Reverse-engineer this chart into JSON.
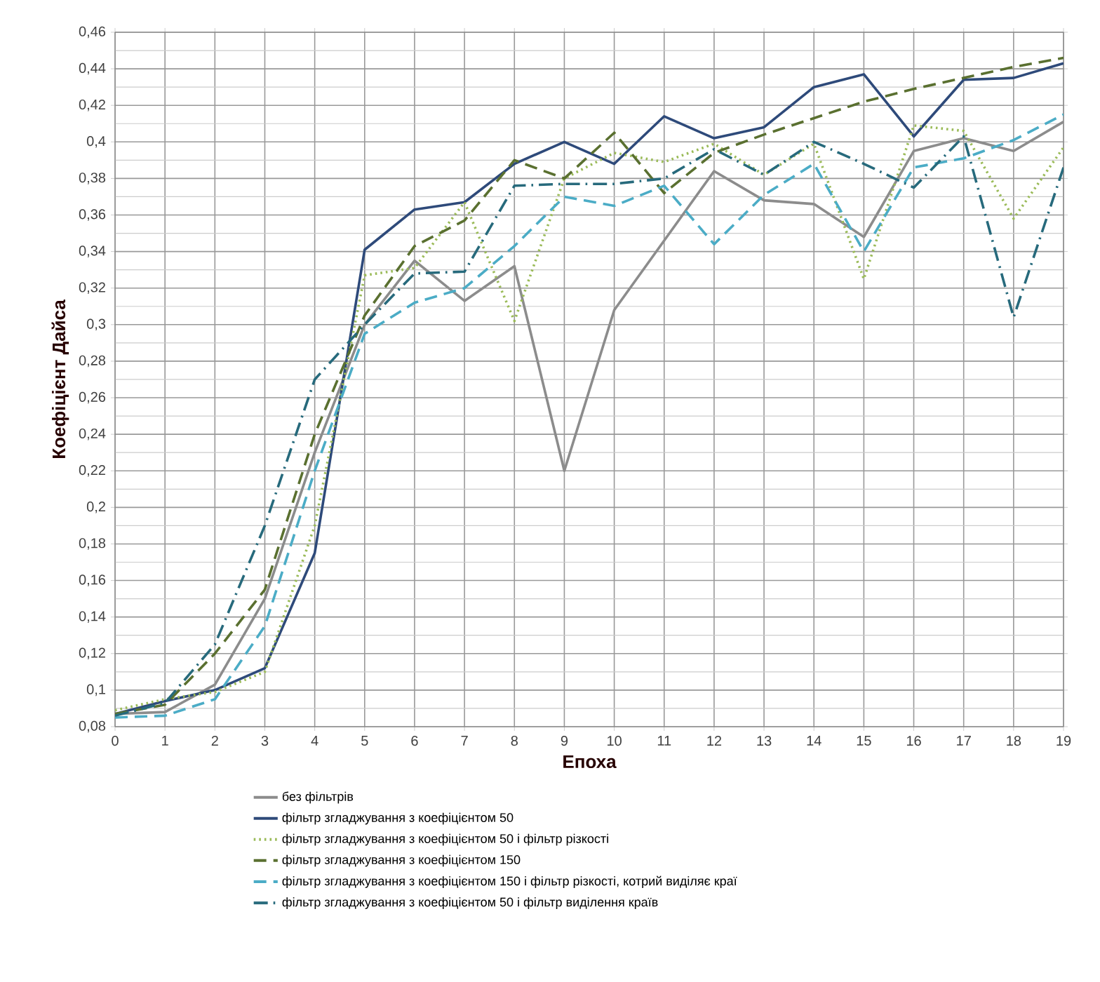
{
  "chart_data": {
    "type": "line",
    "xlabel": "Епоха",
    "ylabel": "Коефіцієнт Дайса",
    "x": [
      0,
      1,
      2,
      3,
      4,
      5,
      6,
      7,
      8,
      9,
      10,
      11,
      12,
      13,
      14,
      15,
      16,
      17,
      18,
      19
    ],
    "xlim": [
      0,
      19
    ],
    "xticks": [
      0,
      1,
      2,
      3,
      4,
      5,
      6,
      7,
      8,
      9,
      10,
      11,
      12,
      13,
      14,
      15,
      16,
      17,
      18,
      19
    ],
    "ylim": [
      0.08,
      0.46
    ],
    "yticks": [
      {
        "value": 0.08,
        "label": "0,08"
      },
      {
        "value": 0.1,
        "label": "0,1"
      },
      {
        "value": 0.12,
        "label": "0,12"
      },
      {
        "value": 0.14,
        "label": "0,14"
      },
      {
        "value": 0.16,
        "label": "0,16"
      },
      {
        "value": 0.18,
        "label": "0,18"
      },
      {
        "value": 0.2,
        "label": "0,2"
      },
      {
        "value": 0.22,
        "label": "0,22"
      },
      {
        "value": 0.24,
        "label": "0,24"
      },
      {
        "value": 0.26,
        "label": "0,26"
      },
      {
        "value": 0.28,
        "label": "0,28"
      },
      {
        "value": 0.3,
        "label": "0,3"
      },
      {
        "value": 0.32,
        "label": "0,32"
      },
      {
        "value": 0.34,
        "label": "0,34"
      },
      {
        "value": 0.36,
        "label": "0,36"
      },
      {
        "value": 0.38,
        "label": "0,38"
      },
      {
        "value": 0.4,
        "label": "0,4"
      },
      {
        "value": 0.42,
        "label": "0,42"
      },
      {
        "value": 0.44,
        "label": "0,44"
      },
      {
        "value": 0.46,
        "label": "0,46"
      }
    ],
    "grid": true,
    "legend": "bottom",
    "marker": "none",
    "series": [
      {
        "name": "без фільтрів",
        "color": "#8c8c8c",
        "line_style": "solid",
        "values": [
          0.087,
          0.088,
          0.103,
          0.15,
          0.23,
          0.3,
          0.335,
          0.313,
          0.332,
          0.22,
          0.308,
          0.346,
          0.384,
          0.368,
          0.366,
          0.348,
          0.395,
          0.402,
          0.395,
          0.411
        ]
      },
      {
        "name": "фільтр згладжування з коефіцієнтом 50",
        "color": "#2e4a7a",
        "line_style": "solid",
        "values": [
          0.087,
          0.094,
          0.1,
          0.112,
          0.175,
          0.341,
          0.363,
          0.367,
          0.388,
          0.4,
          0.388,
          0.414,
          0.402,
          0.408,
          0.43,
          0.437,
          0.403,
          0.434,
          0.435,
          0.443
        ]
      },
      {
        "name": "фільтр згладжування з коефіцієнтом 50 і фільтр різкості",
        "color": "#9bbb59",
        "line_style": "dotted",
        "values": [
          0.089,
          0.095,
          0.099,
          0.11,
          0.19,
          0.327,
          0.331,
          0.367,
          0.302,
          0.38,
          0.394,
          0.389,
          0.399,
          0.382,
          0.399,
          0.325,
          0.409,
          0.406,
          0.358,
          0.397
        ]
      },
      {
        "name": "фільтр згладжування з коефіцієнтом 150",
        "color": "#5a7030",
        "line_style": "dashed",
        "values": [
          0.087,
          0.092,
          0.12,
          0.155,
          0.24,
          0.305,
          0.343,
          0.357,
          0.39,
          0.38,
          0.405,
          0.372,
          0.394,
          0.404,
          0.413,
          0.422,
          0.429,
          0.435,
          0.441,
          0.446
        ]
      },
      {
        "name": "фільтр згладжування з коефіцієнтом 150 і фільтр різкості, котрий виділяє краї",
        "color": "#4bacc6",
        "line_style": "dashed",
        "values": [
          0.085,
          0.086,
          0.095,
          0.135,
          0.22,
          0.295,
          0.312,
          0.32,
          0.343,
          0.37,
          0.365,
          0.376,
          0.344,
          0.371,
          0.388,
          0.34,
          0.386,
          0.391,
          0.401,
          0.415
        ]
      },
      {
        "name": "фільтр згладжування з коефіцієнтом 50 і фільтр виділення країв",
        "color": "#276a7c",
        "line_style": "dashdot",
        "values": [
          0.086,
          0.093,
          0.125,
          0.19,
          0.27,
          0.3,
          0.328,
          0.329,
          0.376,
          0.377,
          0.377,
          0.38,
          0.396,
          0.382,
          0.4,
          0.388,
          0.375,
          0.403,
          0.304,
          0.386
        ]
      }
    ]
  }
}
